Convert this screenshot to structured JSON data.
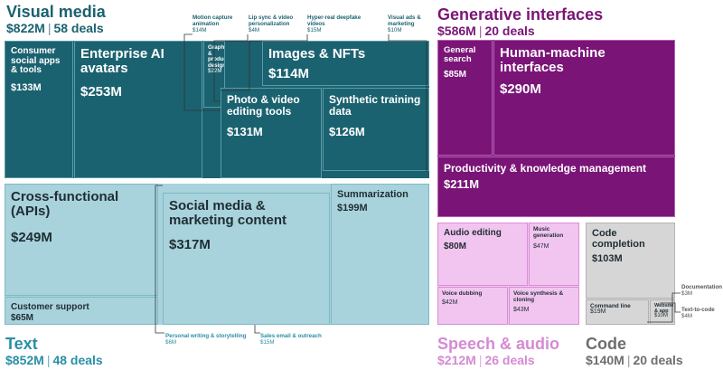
{
  "chart_data": {
    "type": "treemap",
    "unit": "$M",
    "groups": [
      {
        "key": "visual",
        "name": "Visual media",
        "total_label": "$822M",
        "deals_label": "58 deals",
        "total": 822,
        "deals": 58,
        "color": "#1b6270",
        "children": [
          {
            "key": "v_social",
            "name": "Consumer social apps & tools",
            "label": "$133M",
            "value": 133
          },
          {
            "key": "v_avatars",
            "name": "Enterprise AI avatars",
            "label": "$253M",
            "value": 253
          },
          {
            "key": "v_motion",
            "name": "Motion capture animation",
            "label": "$14M",
            "value": 14
          },
          {
            "key": "v_lipsync",
            "name": "Lip sync & video personalization",
            "label": "$4M",
            "value": 4
          },
          {
            "key": "v_deepfake",
            "name": "Hyper-real deepfake videos",
            "label": "$15M",
            "value": 15
          },
          {
            "key": "v_ads",
            "name": "Visual ads & marketing",
            "label": "$10M",
            "value": 10
          },
          {
            "key": "v_graphics",
            "name": "Graphics & product design",
            "label": "$22M",
            "value": 22
          },
          {
            "key": "v_images",
            "name": "Images & NFTs",
            "label": "$114M",
            "value": 114
          },
          {
            "key": "v_photo",
            "name": "Photo & video editing tools",
            "label": "$131M",
            "value": 131
          },
          {
            "key": "v_synth",
            "name": "Synthetic training data",
            "label": "$126M",
            "value": 126
          }
        ]
      },
      {
        "key": "genint",
        "name": "Generative interfaces",
        "total_label": "$586M",
        "deals_label": "20 deals",
        "total": 586,
        "deals": 20,
        "color": "#7a1477",
        "children": [
          {
            "key": "g_search",
            "name": "General search",
            "label": "$85M",
            "value": 85
          },
          {
            "key": "g_hmi",
            "name": "Human-machine interfaces",
            "label": "$290M",
            "value": 290
          },
          {
            "key": "g_prod",
            "name": "Productivity & knowledge management",
            "label": "$211M",
            "value": 211
          }
        ]
      },
      {
        "key": "text",
        "name": "Text",
        "total_label": "$852M",
        "deals_label": "48 deals",
        "total": 852,
        "deals": 48,
        "color": "#a8d3dc",
        "children": [
          {
            "key": "t_cross",
            "name": "Cross-functional (APIs)",
            "label": "$249M",
            "value": 249
          },
          {
            "key": "t_support",
            "name": "Customer support",
            "label": "$65M",
            "value": 65
          },
          {
            "key": "t_socmkt",
            "name": "Social media & marketing content",
            "label": "$317M",
            "value": 317
          },
          {
            "key": "t_summ",
            "name": "Summarization",
            "label": "$199M",
            "value": 199
          },
          {
            "key": "t_writing",
            "name": "Personal writing & storytelling",
            "label": "$6M",
            "value": 6
          },
          {
            "key": "t_email",
            "name": "Sales email & outreach",
            "label": "$15M",
            "value": 15
          }
        ]
      },
      {
        "key": "speech",
        "name": "Speech & audio",
        "total_label": "$212M",
        "deals_label": "26 deals",
        "total": 212,
        "deals": 26,
        "color": "#f2c5f0",
        "children": [
          {
            "key": "s_edit",
            "name": "Audio editing",
            "label": "$80M",
            "value": 80
          },
          {
            "key": "s_music",
            "name": "Music generation",
            "label": "$47M",
            "value": 47
          },
          {
            "key": "s_dub",
            "name": "Voice dubbing",
            "label": "$42M",
            "value": 42
          },
          {
            "key": "s_clone",
            "name": "Voice synthesis & cloning",
            "label": "$43M",
            "value": 43
          }
        ]
      },
      {
        "key": "code",
        "name": "Code",
        "total_label": "$140M",
        "deals_label": "20 deals",
        "total": 140,
        "deals": 20,
        "color": "#d6d6d6",
        "children": [
          {
            "key": "c_completion",
            "name": "Code completion",
            "label": "$103M",
            "value": 103
          },
          {
            "key": "c_cli",
            "name": "Command line",
            "label": "$19M",
            "value": 19
          },
          {
            "key": "c_web",
            "name": "Website & app",
            "label": "$10M",
            "value": 10
          },
          {
            "key": "c_docs",
            "name": "Documentation",
            "label": "$3M",
            "value": 3
          },
          {
            "key": "c_t2c",
            "name": "Text-to-code",
            "label": "$4M",
            "value": 4
          }
        ]
      }
    ]
  }
}
